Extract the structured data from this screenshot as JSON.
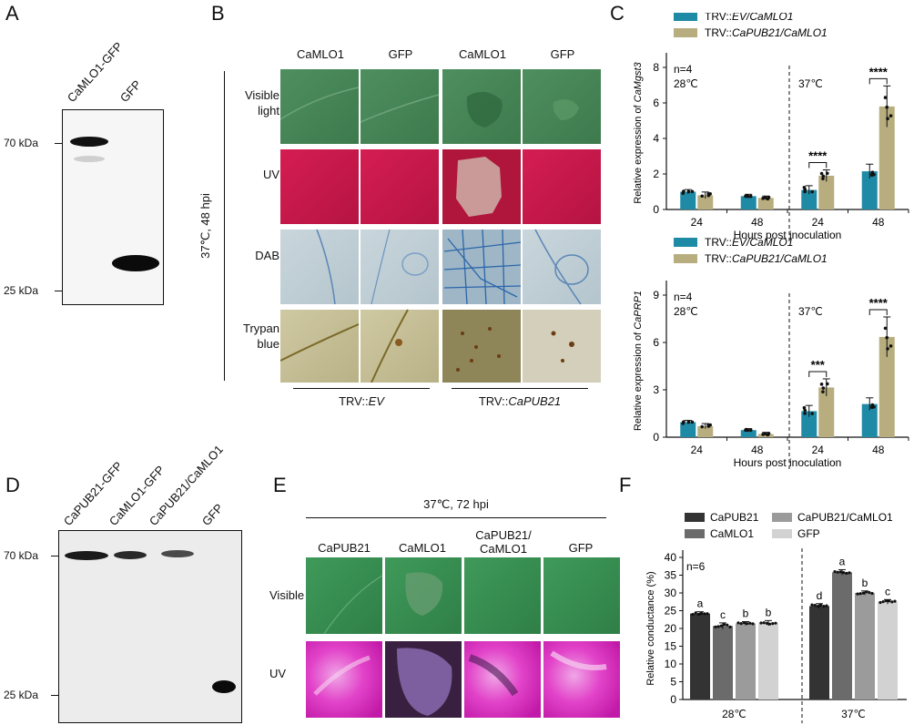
{
  "panels": {
    "A": "A",
    "B": "B",
    "C": "C",
    "D": "D",
    "E": "E",
    "F": "F"
  },
  "panelA": {
    "lanes": [
      "CaMLO1-GFP",
      "GFP"
    ],
    "markers": [
      "70 kDa",
      "25 kDa"
    ]
  },
  "panelB": {
    "condition": "37℃, 48 hpi",
    "columns": [
      "CaMLO1",
      "GFP",
      "CaMLO1",
      "GFP"
    ],
    "rows": [
      "Visible light",
      "UV",
      "DAB",
      "Trypan blue"
    ],
    "groups": [
      "TRV::EV",
      "TRV::CaPUB21"
    ],
    "group_prefix": "TRV::",
    "group_italics": [
      "EV",
      "CaPUB21"
    ]
  },
  "panelD": {
    "lanes": [
      "CaPUB21-GFP",
      "CaMLO1-GFP",
      "CaPUB21/CaMLO1",
      "GFP"
    ],
    "markers": [
      "70 kDa",
      "25 kDa"
    ]
  },
  "panelE": {
    "condition": "37℃, 72 hpi",
    "columns": [
      "CaPUB21",
      "CaMLO1",
      "CaPUB21/\nCaMLO1",
      "GFP"
    ],
    "col_line1": [
      "CaPUB21",
      "CaMLO1",
      "CaPUB21/",
      "GFP"
    ],
    "col_line2": [
      "",
      "",
      "CaMLO1",
      ""
    ],
    "rows": [
      "Visible",
      "UV"
    ]
  },
  "colors": {
    "teal": "#1f8aa6",
    "tan": "#b8ad7f",
    "c1": "#333333",
    "c2": "#6b6b6b",
    "c3": "#9b9b9b",
    "c4": "#d2d2d2"
  },
  "chart_data": [
    {
      "type": "bar",
      "ylabel": "Relative expression of CaMgst3",
      "ylabel_prefix": "Relative expression of ",
      "ylabel_gene": "CaMgst3",
      "xlabel": "Hours post inoculation",
      "categories": [
        "24",
        "48",
        "24",
        "48"
      ],
      "temps": [
        "28℃",
        "37℃"
      ],
      "n": "n=4",
      "ylim": [
        0,
        8
      ],
      "yticks": [
        0,
        2,
        4,
        6,
        8
      ],
      "series": [
        {
          "name": "TRV::EV/CaMLO1",
          "name_prefix": "TRV::",
          "name_italic": "EV/CaMLO1",
          "values": [
            1.0,
            0.75,
            1.1,
            2.15
          ]
        },
        {
          "name": "TRV::CaPUB21/CaMLO1",
          "name_prefix": "TRV::",
          "name_italic": "CaPUB21/CaMLO1",
          "values": [
            0.8,
            0.65,
            1.9,
            5.8
          ]
        }
      ],
      "significance": [
        "****",
        "****"
      ]
    },
    {
      "type": "bar",
      "ylabel": "Relative expression of CaPRP1",
      "ylabel_prefix": "Relative expression of ",
      "ylabel_gene": "CaPRP1",
      "xlabel": "Hours post inoculation",
      "categories": [
        "24",
        "48",
        "24",
        "48"
      ],
      "temps": [
        "28℃",
        "37℃"
      ],
      "n": "n=4",
      "ylim": [
        0,
        9
      ],
      "yticks": [
        0,
        3,
        6,
        9
      ],
      "series": [
        {
          "name": "TRV::EV/CaMLO1",
          "name_prefix": "TRV::",
          "name_italic": "EV/CaMLO1",
          "values": [
            0.95,
            0.45,
            1.65,
            2.1
          ]
        },
        {
          "name": "TRV::CaPUB21/CaMLO1",
          "name_prefix": "TRV::",
          "name_italic": "CaPUB21/CaMLO1",
          "values": [
            0.7,
            0.2,
            3.15,
            6.35
          ]
        }
      ],
      "significance": [
        "***",
        "****"
      ]
    },
    {
      "type": "bar",
      "ylabel": "Relative conductance (%)",
      "categories": [
        "28℃",
        "37℃"
      ],
      "n": "n=6",
      "ylim": [
        0,
        40
      ],
      "yticks": [
        0,
        5,
        10,
        15,
        20,
        25,
        30,
        35,
        40
      ],
      "series": [
        {
          "name": "CaPUB21",
          "values": [
            24.2,
            26.3
          ],
          "letters": [
            "a",
            "d"
          ]
        },
        {
          "name": "CaMLO1",
          "values": [
            20.7,
            35.8
          ],
          "letters": [
            "c",
            "a"
          ]
        },
        {
          "name": "CaPUB21/CaMLO1",
          "values": [
            21.4,
            30.0
          ],
          "letters": [
            "b",
            "b"
          ]
        },
        {
          "name": "GFP",
          "values": [
            21.5,
            27.5
          ],
          "letters": [
            "b",
            "c"
          ]
        }
      ]
    }
  ]
}
